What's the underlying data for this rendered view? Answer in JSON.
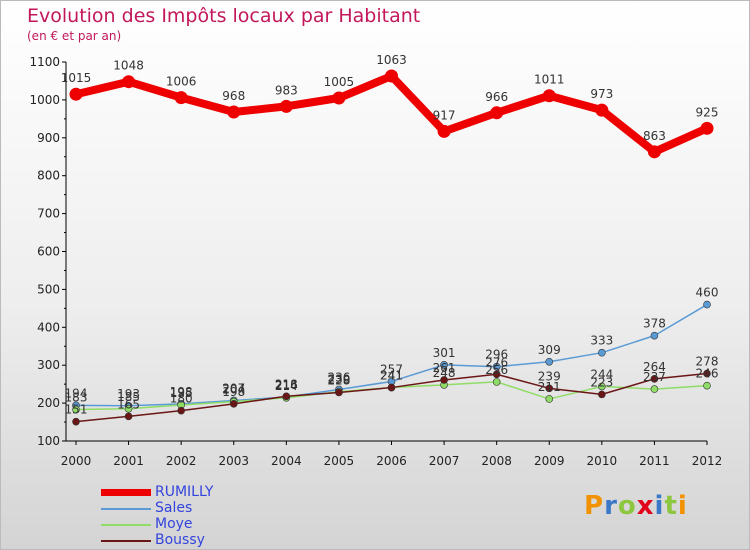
{
  "title": "Evolution des Impôts locaux par Habitant",
  "subtitle": "(en € et par an)",
  "logo": {
    "text": "Proxiti",
    "letters": [
      "P",
      "r",
      "o",
      "x",
      "i",
      "t",
      "i"
    ],
    "colors": [
      "#f39200",
      "#3c78c8",
      "#8dc63f",
      "#e2001a",
      "#3c78c8",
      "#8dc63f",
      "#f39200"
    ]
  },
  "chart_data": {
    "type": "line",
    "title": "Evolution des Impôts locaux par Habitant",
    "subtitle": "(en € et par an)",
    "x": [
      "2000",
      "2001",
      "2002",
      "2003",
      "2004",
      "2005",
      "2006",
      "2007",
      "2008",
      "2009",
      "2010",
      "2011",
      "2012"
    ],
    "ylim": [
      100,
      1100
    ],
    "yticks": [
      "100",
      "200",
      "300",
      "400",
      "500",
      "600",
      "700",
      "800",
      "900",
      "1000",
      "1100"
    ],
    "grid": false,
    "legend": "bottom-left",
    "series": [
      {
        "name": "RUMILLY",
        "color": "#ee0000",
        "values": [
          1015,
          1048,
          1006,
          968,
          983,
          1005,
          1063,
          917,
          966,
          1011,
          973,
          863,
          925
        ],
        "labels": [
          "1015",
          "1048",
          "1006",
          "968",
          "983",
          "1005",
          "1063",
          "917",
          "966",
          "1011",
          "973",
          "863",
          "925"
        ]
      },
      {
        "name": "Sales",
        "color": "#5a9bd5",
        "values": [
          194,
          193,
          198,
          207,
          216,
          236,
          257,
          301,
          296,
          309,
          333,
          378,
          460
        ],
        "labels": [
          "194",
          "193",
          "198",
          "207",
          "216",
          "236",
          "257",
          "301",
          "296",
          "309",
          "333",
          "378",
          "460"
        ]
      },
      {
        "name": "Moye",
        "color": "#8fdd66",
        "values": [
          183,
          185,
          195,
          204,
          214,
          230,
          241,
          248,
          256,
          211,
          244,
          237,
          246
        ],
        "labels": [
          "183",
          "185",
          "195",
          "204",
          "214",
          "230",
          "241",
          "248",
          "256",
          "211",
          "244",
          "237",
          "246"
        ]
      },
      {
        "name": "Boussy",
        "color": "#6b1616",
        "values": [
          151,
          165,
          180,
          198,
          218,
          228,
          241,
          261,
          276,
          239,
          223,
          264,
          278
        ],
        "labels": [
          "151",
          "165",
          "180",
          "198",
          "218",
          "228",
          "241",
          "261",
          "276",
          "239",
          "223",
          "264",
          "278"
        ]
      }
    ]
  }
}
